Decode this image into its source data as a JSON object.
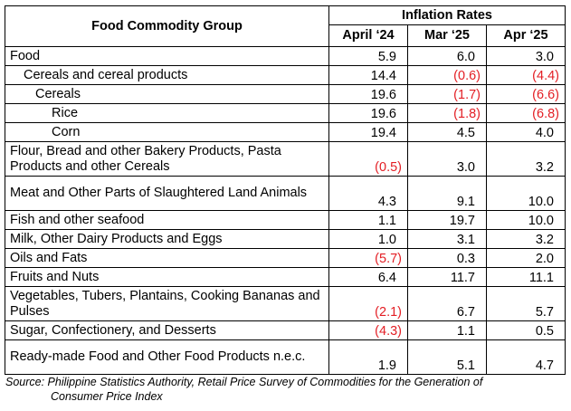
{
  "table": {
    "group_header": "Food Commodity Group",
    "rates_header": "Inflation Rates",
    "columns": [
      "April ‘24",
      "Mar ‘25",
      "Apr ‘25"
    ],
    "negative_color": "#e31e24",
    "rows": [
      {
        "label": "Food",
        "level": 0,
        "lines": 1,
        "values": [
          {
            "text": "5.9",
            "neg": false
          },
          {
            "text": "6.0",
            "neg": false
          },
          {
            "text": "3.0",
            "neg": false
          }
        ]
      },
      {
        "label": "Cereals and cereal products",
        "level": 1,
        "lines": 1,
        "values": [
          {
            "text": "14.4",
            "neg": false
          },
          {
            "text": "(0.6)",
            "neg": true
          },
          {
            "text": "(4.4)",
            "neg": true
          }
        ]
      },
      {
        "label": "Cereals",
        "level": 2,
        "lines": 1,
        "values": [
          {
            "text": "19.6",
            "neg": false
          },
          {
            "text": "(1.7)",
            "neg": true
          },
          {
            "text": "(6.6)",
            "neg": true
          }
        ]
      },
      {
        "label": "Rice",
        "level": 3,
        "lines": 1,
        "values": [
          {
            "text": "19.6",
            "neg": false
          },
          {
            "text": "(1.8)",
            "neg": true
          },
          {
            "text": "(6.8)",
            "neg": true
          }
        ]
      },
      {
        "label": "Corn",
        "level": 3,
        "lines": 1,
        "values": [
          {
            "text": "19.4",
            "neg": false
          },
          {
            "text": "4.5",
            "neg": false
          },
          {
            "text": "4.0",
            "neg": false
          }
        ]
      },
      {
        "label": "Flour, Bread and other Bakery Products, Pasta Products and other Cereals",
        "level": 0,
        "lines": 2,
        "values": [
          {
            "text": "(0.5)",
            "neg": true
          },
          {
            "text": "3.0",
            "neg": false
          },
          {
            "text": "3.2",
            "neg": false
          }
        ]
      },
      {
        "label": "Meat and Other Parts of Slaughtered Land Animals",
        "level": 0,
        "lines": 2,
        "values": [
          {
            "text": "4.3",
            "neg": false
          },
          {
            "text": "9.1",
            "neg": false
          },
          {
            "text": "10.0",
            "neg": false
          }
        ]
      },
      {
        "label": "Fish and other seafood",
        "level": 0,
        "lines": 1,
        "values": [
          {
            "text": "1.1",
            "neg": false
          },
          {
            "text": "19.7",
            "neg": false
          },
          {
            "text": "10.0",
            "neg": false
          }
        ]
      },
      {
        "label": "Milk, Other Dairy Products and Eggs",
        "level": 0,
        "lines": 1,
        "values": [
          {
            "text": "1.0",
            "neg": false
          },
          {
            "text": "3.1",
            "neg": false
          },
          {
            "text": "3.2",
            "neg": false
          }
        ]
      },
      {
        "label": "Oils and Fats",
        "level": 0,
        "lines": 1,
        "values": [
          {
            "text": "(5.7)",
            "neg": true
          },
          {
            "text": "0.3",
            "neg": false
          },
          {
            "text": "2.0",
            "neg": false
          }
        ]
      },
      {
        "label": "Fruits and Nuts",
        "level": 0,
        "lines": 1,
        "values": [
          {
            "text": "6.4",
            "neg": false
          },
          {
            "text": "11.7",
            "neg": false
          },
          {
            "text": "11.1",
            "neg": false
          }
        ]
      },
      {
        "label": "Vegetables, Tubers, Plantains, Cooking Bananas and Pulses",
        "level": 0,
        "lines": 2,
        "values": [
          {
            "text": "(2.1)",
            "neg": true
          },
          {
            "text": "6.7",
            "neg": false
          },
          {
            "text": "5.7",
            "neg": false
          }
        ]
      },
      {
        "label": "Sugar, Confectionery, and Desserts",
        "level": 0,
        "lines": 1,
        "values": [
          {
            "text": "(4.3)",
            "neg": true
          },
          {
            "text": "1.1",
            "neg": false
          },
          {
            "text": "0.5",
            "neg": false
          }
        ]
      },
      {
        "label": "Ready-made Food and Other Food Products n.e.c.",
        "level": 0,
        "lines": 2,
        "values": [
          {
            "text": "1.9",
            "neg": false
          },
          {
            "text": "5.1",
            "neg": false
          },
          {
            "text": "4.7",
            "neg": false
          }
        ]
      }
    ]
  },
  "source": {
    "line1": "Source: Philippine Statistics Authority, Retail Price Survey of Commodities for the Generation of",
    "line2": "Consumer Price Index"
  }
}
